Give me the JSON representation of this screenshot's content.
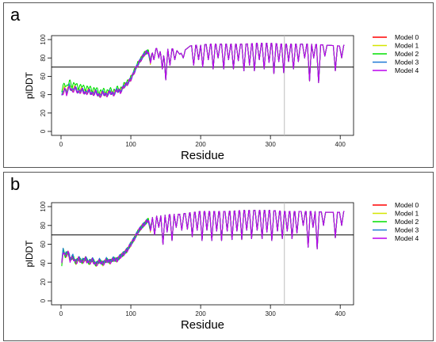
{
  "colors": {
    "frame": "#555555",
    "axis": "#000000",
    "threshold": "#000000",
    "marker": "#bdbdbd"
  },
  "chart_data": [
    {
      "panel": "a",
      "type": "line",
      "xlabel": "Residue",
      "ylabel": "plDDT",
      "xlim": [
        0,
        410
      ],
      "ylim": [
        0,
        100
      ],
      "xticks": [
        0,
        100,
        200,
        300,
        400
      ],
      "yticks": [
        0,
        20,
        40,
        60,
        80,
        100
      ],
      "threshold": 70,
      "marker_x": 320,
      "grid": false,
      "legend_position": "right",
      "series_names": [
        "Model 0",
        "Model 1",
        "Model 2",
        "Model 3",
        "Model 4"
      ],
      "series_colors": [
        "#ff0000",
        "#d4e600",
        "#00e000",
        "#1e78d6",
        "#bb00ee"
      ],
      "series_offsets": [
        0,
        2,
        7,
        1,
        0
      ],
      "profile": [
        [
          1,
          38
        ],
        [
          5,
          46
        ],
        [
          8,
          41
        ],
        [
          12,
          49
        ],
        [
          16,
          43
        ],
        [
          20,
          47
        ],
        [
          25,
          42
        ],
        [
          30,
          45
        ],
        [
          35,
          41
        ],
        [
          40,
          44
        ],
        [
          45,
          40
        ],
        [
          50,
          43
        ],
        [
          55,
          38
        ],
        [
          60,
          42
        ],
        [
          65,
          39
        ],
        [
          70,
          43
        ],
        [
          75,
          40
        ],
        [
          80,
          45
        ],
        [
          85,
          43
        ],
        [
          90,
          49
        ],
        [
          95,
          52
        ],
        [
          100,
          57
        ],
        [
          105,
          65
        ],
        [
          110,
          73
        ],
        [
          115,
          79
        ],
        [
          120,
          85
        ],
        [
          125,
          87
        ],
        [
          130,
          89
        ],
        [
          135,
          90
        ],
        [
          140,
          91
        ],
        [
          145,
          90
        ],
        [
          150,
          89
        ],
        [
          155,
          90
        ],
        [
          160,
          90
        ],
        [
          165,
          89
        ],
        [
          170,
          84
        ],
        [
          175,
          87
        ],
        [
          180,
          90
        ],
        [
          185,
          93
        ],
        [
          190,
          94
        ],
        [
          200,
          94
        ],
        [
          210,
          95
        ],
        [
          220,
          95
        ],
        [
          240,
          95
        ],
        [
          260,
          95
        ],
        [
          280,
          96
        ],
        [
          300,
          96
        ],
        [
          320,
          95
        ],
        [
          340,
          95
        ],
        [
          360,
          95
        ],
        [
          380,
          94
        ],
        [
          400,
          93
        ],
        [
          406,
          94
        ]
      ],
      "dips": [
        [
          128,
          75
        ],
        [
          133,
          78
        ],
        [
          140,
          80
        ],
        [
          145,
          68
        ],
        [
          150,
          56
        ],
        [
          156,
          72
        ],
        [
          163,
          78
        ],
        [
          175,
          80
        ],
        [
          190,
          72
        ],
        [
          197,
          78
        ],
        [
          203,
          70
        ],
        [
          211,
          78
        ],
        [
          218,
          68
        ],
        [
          225,
          80
        ],
        [
          233,
          68
        ],
        [
          240,
          78
        ],
        [
          247,
          68
        ],
        [
          254,
          77
        ],
        [
          262,
          66
        ],
        [
          270,
          72
        ],
        [
          277,
          66
        ],
        [
          284,
          78
        ],
        [
          291,
          68
        ],
        [
          298,
          75
        ],
        [
          305,
          63
        ],
        [
          312,
          76
        ],
        [
          319,
          64
        ],
        [
          326,
          76
        ],
        [
          333,
          68
        ],
        [
          340,
          76
        ],
        [
          349,
          80
        ],
        [
          356,
          55
        ],
        [
          362,
          80
        ],
        [
          369,
          53
        ],
        [
          378,
          82
        ],
        [
          393,
          66
        ],
        [
          402,
          80
        ]
      ]
    },
    {
      "panel": "b",
      "type": "line",
      "xlabel": "Residue",
      "ylabel": "plDDT",
      "xlim": [
        0,
        410
      ],
      "ylim": [
        0,
        100
      ],
      "xticks": [
        0,
        100,
        200,
        300,
        400
      ],
      "yticks": [
        0,
        20,
        40,
        60,
        80,
        100
      ],
      "threshold": 70,
      "marker_x": 320,
      "grid": false,
      "legend_position": "right",
      "series_names": [
        "Model 0",
        "Model 1",
        "Model 2",
        "Model 3",
        "Model 4"
      ],
      "series_colors": [
        "#ff0000",
        "#d4e600",
        "#00e000",
        "#1e78d6",
        "#bb00ee"
      ],
      "series_offsets": [
        1,
        0,
        1,
        2,
        0
      ],
      "profile": [
        [
          1,
          38
        ],
        [
          3,
          53
        ],
        [
          6,
          47
        ],
        [
          10,
          51
        ],
        [
          13,
          43
        ],
        [
          17,
          46
        ],
        [
          21,
          40
        ],
        [
          25,
          44
        ],
        [
          30,
          41
        ],
        [
          35,
          44
        ],
        [
          40,
          40
        ],
        [
          45,
          43
        ],
        [
          50,
          38
        ],
        [
          55,
          42
        ],
        [
          60,
          39
        ],
        [
          65,
          43
        ],
        [
          70,
          41
        ],
        [
          75,
          44
        ],
        [
          80,
          43
        ],
        [
          85,
          47
        ],
        [
          90,
          50
        ],
        [
          95,
          54
        ],
        [
          100,
          60
        ],
        [
          105,
          66
        ],
        [
          110,
          73
        ],
        [
          115,
          78
        ],
        [
          120,
          82
        ],
        [
          125,
          86
        ],
        [
          130,
          88
        ],
        [
          135,
          90
        ],
        [
          140,
          90
        ],
        [
          150,
          91
        ],
        [
          160,
          92
        ],
        [
          170,
          92
        ],
        [
          180,
          93
        ],
        [
          190,
          94
        ],
        [
          200,
          95
        ],
        [
          220,
          95
        ],
        [
          240,
          95
        ],
        [
          260,
          96
        ],
        [
          280,
          96
        ],
        [
          300,
          96
        ],
        [
          320,
          95
        ],
        [
          340,
          95
        ],
        [
          360,
          95
        ],
        [
          380,
          94
        ],
        [
          400,
          94
        ],
        [
          406,
          95
        ]
      ],
      "dips": [
        [
          128,
          75
        ],
        [
          134,
          70
        ],
        [
          140,
          78
        ],
        [
          146,
          60
        ],
        [
          152,
          73
        ],
        [
          159,
          64
        ],
        [
          165,
          78
        ],
        [
          173,
          75
        ],
        [
          181,
          76
        ],
        [
          188,
          68
        ],
        [
          195,
          75
        ],
        [
          202,
          64
        ],
        [
          209,
          75
        ],
        [
          216,
          64
        ],
        [
          223,
          74
        ],
        [
          230,
          64
        ],
        [
          238,
          74
        ],
        [
          245,
          65
        ],
        [
          252,
          74
        ],
        [
          259,
          65
        ],
        [
          266,
          75
        ],
        [
          273,
          66
        ],
        [
          281,
          75
        ],
        [
          288,
          66
        ],
        [
          295,
          73
        ],
        [
          302,
          64
        ],
        [
          310,
          74
        ],
        [
          317,
          66
        ],
        [
          324,
          74
        ],
        [
          331,
          66
        ],
        [
          338,
          72
        ],
        [
          347,
          80
        ],
        [
          354,
          57
        ],
        [
          361,
          78
        ],
        [
          367,
          55
        ],
        [
          376,
          80
        ],
        [
          393,
          67
        ],
        [
          402,
          80
        ]
      ]
    }
  ]
}
